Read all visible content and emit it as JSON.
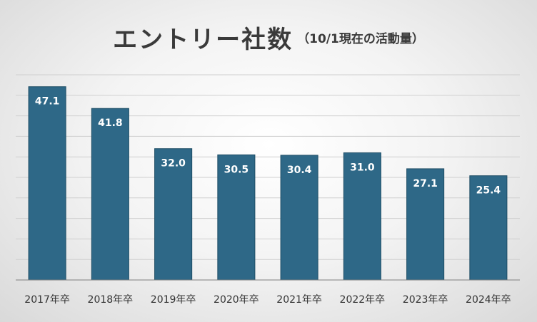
{
  "chart_data": {
    "type": "bar",
    "title": "エントリー社数",
    "subtitle": "（10/1現在の活動量）",
    "categories": [
      "2017年卒",
      "2018年卒",
      "2019年卒",
      "2020年卒",
      "2021年卒",
      "2022年卒",
      "2023年卒",
      "2024年卒"
    ],
    "values": [
      47.1,
      41.8,
      32.0,
      30.5,
      30.4,
      31.0,
      27.1,
      25.4
    ],
    "value_labels": [
      "47.1",
      "41.8",
      "32.0",
      "30.5",
      "30.4",
      "31.0",
      "27.1",
      "25.4"
    ],
    "xlabel": "",
    "ylabel": "",
    "ylim": [
      0,
      50
    ],
    "grid": true,
    "legend": "none",
    "colors": {
      "bar": "#2E6887",
      "bar_edge": "#1F4E66",
      "grid": "#cfcfcf",
      "axis": "#7f7f7f"
    }
  }
}
